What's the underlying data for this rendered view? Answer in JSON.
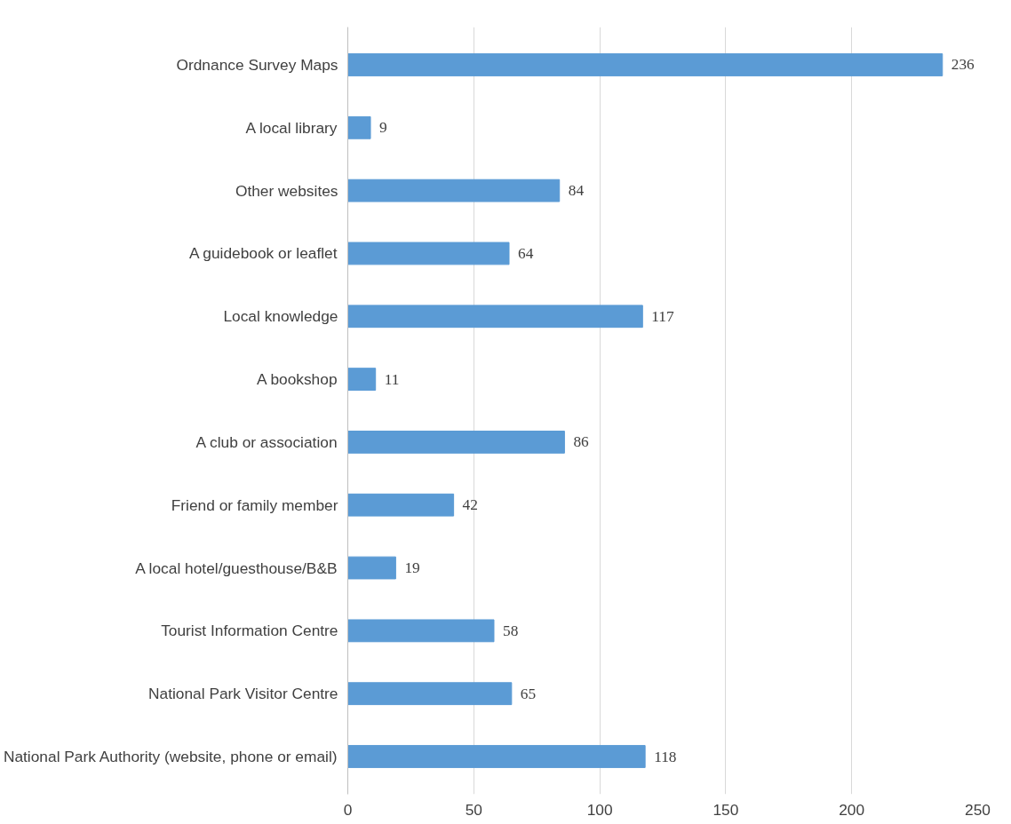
{
  "chart_data": {
    "type": "bar",
    "orientation": "horizontal",
    "categories": [
      "Ordnance Survey Maps",
      "A local library",
      "Other websites",
      "A guidebook or leaflet",
      "Local knowledge",
      "A bookshop",
      "A club or association",
      "Friend or family member",
      "A local hotel/guesthouse/B&B",
      "Tourist Information Centre",
      "National Park Visitor Centre",
      "National Park Authority (website, phone or email)"
    ],
    "values": [
      236,
      9,
      84,
      64,
      117,
      11,
      86,
      42,
      19,
      58,
      65,
      118
    ],
    "color": "#5b9bd5",
    "xlim": [
      0,
      250
    ],
    "xticks": [
      0,
      50,
      100,
      150,
      200,
      250
    ],
    "grid": "x",
    "data_labels": true
  }
}
